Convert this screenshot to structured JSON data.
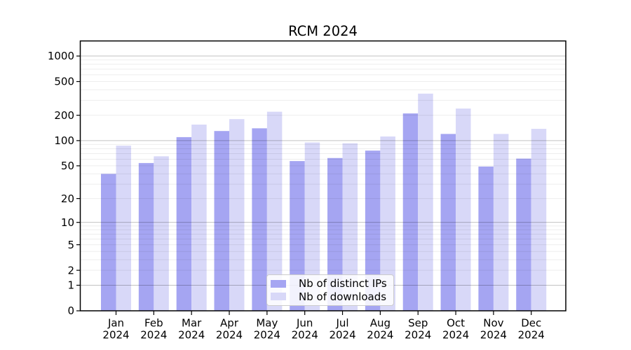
{
  "title": "RCM 2024",
  "chart_data": {
    "type": "bar",
    "title": "RCM 2024",
    "categories": [
      "Jan",
      "Feb",
      "Mar",
      "Apr",
      "May",
      "Jun",
      "Jul",
      "Aug",
      "Sep",
      "Oct",
      "Nov",
      "Dec"
    ],
    "year_label": "2024",
    "series": [
      {
        "name": "Nb of distinct IPs",
        "color": "#a5a5f2",
        "values": [
          40,
          54,
          110,
          130,
          140,
          57,
          62,
          76,
          210,
          120,
          49,
          61
        ]
      },
      {
        "name": "Nb of downloads",
        "color": "#d8d8f8",
        "values": [
          87,
          65,
          155,
          180,
          220,
          95,
          93,
          112,
          360,
          240,
          120,
          138
        ]
      }
    ],
    "xlabel": "",
    "ylabel": "",
    "yscale": "symlog",
    "y_ticks": [
      0,
      1,
      2,
      5,
      10,
      20,
      50,
      100,
      200,
      500,
      1000
    ],
    "y_major_gridlines": [
      1,
      10,
      100,
      1000
    ],
    "ylim": [
      0,
      1500
    ],
    "grid": true,
    "legend_position": "lower center"
  },
  "legend": {
    "items": [
      {
        "label": "Nb of distinct IPs",
        "color": "#a5a5f2"
      },
      {
        "label": "Nb of downloads",
        "color": "#d8d8f8"
      }
    ]
  },
  "colors": {
    "background": "#ffffff",
    "series_dark": "#a5a5f2",
    "series_light": "#d8d8f8",
    "grid_major": "rgba(0,0,0,0.24)",
    "grid_minor": "rgba(0,0,0,0.07)",
    "axis_line": "#000000",
    "tick_text": "#000000",
    "legend_border": "#cccccc"
  }
}
